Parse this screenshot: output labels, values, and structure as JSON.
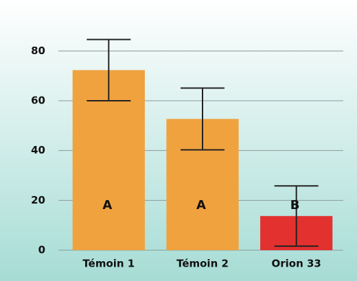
{
  "chart_data": {
    "type": "bar",
    "categories": [
      "Témoin 1",
      "Témoin 2",
      "Orion 33"
    ],
    "values": [
      72.3,
      52.7,
      13.7
    ],
    "errors": [
      12.3,
      12.4,
      12.1
    ],
    "letters": [
      "A",
      "A",
      "B"
    ],
    "colors": [
      "#f0a23e",
      "#f0a23e",
      "#e3312f"
    ],
    "ylim": [
      0,
      90
    ],
    "yticks": [
      0,
      20,
      40,
      60,
      80
    ],
    "grid": true
  }
}
